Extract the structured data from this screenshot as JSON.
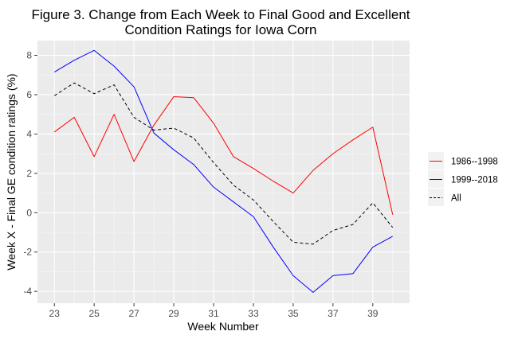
{
  "chart_data": {
    "type": "line",
    "title": [
      "Figure 3. Change from Each Week to Final Good and Excellent",
      "Condition Ratings for Iowa Corn"
    ],
    "xlabel": "Week Number",
    "ylabel": "Week X - Final GE condition ratings (%)",
    "x": [
      23,
      24,
      25,
      26,
      27,
      28,
      29,
      30,
      31,
      32,
      33,
      34,
      35,
      36,
      37,
      38,
      39,
      40
    ],
    "xlim": [
      22.15,
      40.85
    ],
    "ylim": [
      -4.6,
      8.75
    ],
    "xticks": [
      23,
      25,
      27,
      29,
      31,
      33,
      35,
      37,
      39
    ],
    "yticks": [
      -4,
      -2,
      0,
      2,
      4,
      6,
      8
    ],
    "grid": true,
    "legend_position": "right",
    "series": [
      {
        "name": "1986--1998",
        "color": "#ff0000",
        "dash": "solid",
        "values": [
          4.1,
          4.85,
          2.85,
          5.0,
          2.6,
          4.45,
          5.9,
          5.85,
          4.55,
          2.85,
          2.25,
          1.6,
          1.0,
          2.15,
          3.0,
          3.7,
          4.35,
          -0.1
        ]
      },
      {
        "name": "1999--2018",
        "color": "#0000ff",
        "dash": "solid",
        "values": [
          7.15,
          7.75,
          8.25,
          7.45,
          6.4,
          4.05,
          3.2,
          2.45,
          1.3,
          0.55,
          -0.2,
          -1.75,
          -3.2,
          -4.05,
          -3.2,
          -3.1,
          -1.75,
          -1.2
        ]
      },
      {
        "name": "All",
        "color": "#000000",
        "dash": "dashed",
        "values": [
          5.95,
          6.6,
          6.05,
          6.5,
          4.85,
          4.2,
          4.3,
          3.8,
          2.55,
          1.4,
          0.65,
          -0.45,
          -1.5,
          -1.6,
          -0.9,
          -0.6,
          0.5,
          -0.75
        ]
      }
    ]
  }
}
